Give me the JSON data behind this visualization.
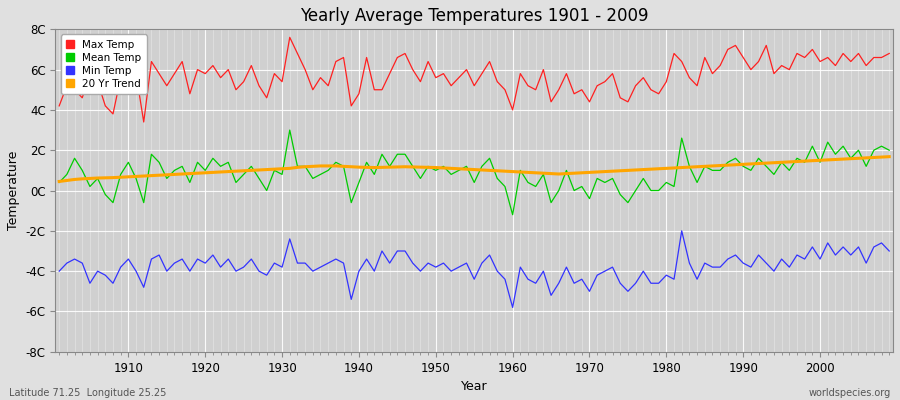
{
  "title": "Yearly Average Temperatures 1901 - 2009",
  "xlabel": "Year",
  "ylabel": "Temperature",
  "lat_lon_label": "Latitude 71.25  Longitude 25.25",
  "watermark": "worldspecies.org",
  "ylim": [
    -8,
    8
  ],
  "yticks": [
    -8,
    -6,
    -4,
    -2,
    0,
    2,
    4,
    6,
    8
  ],
  "ytick_labels": [
    "-8C",
    "-6C",
    "-4C",
    "-2C",
    "0C",
    "2C",
    "4C",
    "6C",
    "8C"
  ],
  "start_year": 1901,
  "end_year": 2009,
  "max_temp_color": "#ff2020",
  "mean_temp_color": "#00cc00",
  "min_temp_color": "#3333ff",
  "trend_color": "#ffa500",
  "background_color": "#e0e0e0",
  "plot_bg_color": "#d0d0d0",
  "legend_labels": [
    "Max Temp",
    "Mean Temp",
    "Min Temp",
    "20 Yr Trend"
  ],
  "max_temp": [
    4.2,
    5.2,
    5.0,
    4.6,
    5.8,
    5.4,
    4.2,
    3.8,
    5.6,
    6.2,
    5.8,
    3.4,
    6.4,
    5.8,
    5.2,
    5.8,
    6.4,
    4.8,
    6.0,
    5.8,
    6.2,
    5.6,
    6.0,
    5.0,
    5.4,
    6.2,
    5.2,
    4.6,
    5.8,
    5.4,
    7.6,
    6.8,
    6.0,
    5.0,
    5.6,
    5.2,
    6.4,
    6.6,
    4.2,
    4.8,
    6.6,
    5.0,
    5.0,
    5.8,
    6.6,
    6.8,
    6.0,
    5.4,
    6.4,
    5.6,
    5.8,
    5.2,
    5.6,
    6.0,
    5.2,
    5.8,
    6.4,
    5.4,
    5.0,
    4.0,
    5.8,
    5.2,
    5.0,
    6.0,
    4.4,
    5.0,
    5.8,
    4.8,
    5.0,
    4.4,
    5.2,
    5.4,
    5.8,
    4.6,
    4.4,
    5.2,
    5.6,
    5.0,
    4.8,
    5.4,
    6.8,
    6.4,
    5.6,
    5.2,
    6.6,
    5.8,
    6.2,
    7.0,
    7.2,
    6.6,
    6.0,
    6.4,
    7.2,
    5.8,
    6.2,
    6.0,
    6.8,
    6.6,
    7.0,
    6.4,
    6.6,
    6.2,
    6.8,
    6.4,
    6.8,
    6.2,
    6.6,
    6.6,
    6.8
  ],
  "mean_temp": [
    0.4,
    0.8,
    1.6,
    1.0,
    0.2,
    0.6,
    -0.2,
    -0.6,
    0.8,
    1.4,
    0.6,
    -0.6,
    1.8,
    1.4,
    0.6,
    1.0,
    1.2,
    0.4,
    1.4,
    1.0,
    1.6,
    1.2,
    1.4,
    0.4,
    0.8,
    1.2,
    0.6,
    0.0,
    1.0,
    0.8,
    3.0,
    1.2,
    1.2,
    0.6,
    0.8,
    1.0,
    1.4,
    1.2,
    -0.6,
    0.4,
    1.4,
    0.8,
    1.8,
    1.2,
    1.8,
    1.8,
    1.2,
    0.6,
    1.2,
    1.0,
    1.2,
    0.8,
    1.0,
    1.2,
    0.4,
    1.2,
    1.6,
    0.6,
    0.2,
    -1.2,
    1.0,
    0.4,
    0.2,
    0.8,
    -0.6,
    0.0,
    1.0,
    0.0,
    0.2,
    -0.4,
    0.6,
    0.4,
    0.6,
    -0.2,
    -0.6,
    0.0,
    0.6,
    0.0,
    0.0,
    0.4,
    0.2,
    2.6,
    1.2,
    0.4,
    1.2,
    1.0,
    1.0,
    1.4,
    1.6,
    1.2,
    1.0,
    1.6,
    1.2,
    0.8,
    1.4,
    1.0,
    1.6,
    1.4,
    2.2,
    1.4,
    2.4,
    1.8,
    2.2,
    1.6,
    2.0,
    1.2,
    2.0,
    2.2,
    2.0
  ],
  "min_temp": [
    -4.0,
    -3.6,
    -3.4,
    -3.6,
    -4.6,
    -4.0,
    -4.2,
    -4.6,
    -3.8,
    -3.4,
    -4.0,
    -4.8,
    -3.4,
    -3.2,
    -4.0,
    -3.6,
    -3.4,
    -4.0,
    -3.4,
    -3.6,
    -3.2,
    -3.8,
    -3.4,
    -4.0,
    -3.8,
    -3.4,
    -4.0,
    -4.2,
    -3.6,
    -3.8,
    -2.4,
    -3.6,
    -3.6,
    -4.0,
    -3.8,
    -3.6,
    -3.4,
    -3.6,
    -5.4,
    -4.0,
    -3.4,
    -4.0,
    -3.0,
    -3.6,
    -3.0,
    -3.0,
    -3.6,
    -4.0,
    -3.6,
    -3.8,
    -3.6,
    -4.0,
    -3.8,
    -3.6,
    -4.4,
    -3.6,
    -3.2,
    -4.0,
    -4.4,
    -5.8,
    -3.8,
    -4.4,
    -4.6,
    -4.0,
    -5.2,
    -4.6,
    -3.8,
    -4.6,
    -4.4,
    -5.0,
    -4.2,
    -4.0,
    -3.8,
    -4.6,
    -5.0,
    -4.6,
    -4.0,
    -4.6,
    -4.6,
    -4.2,
    -4.4,
    -2.0,
    -3.6,
    -4.4,
    -3.6,
    -3.8,
    -3.8,
    -3.4,
    -3.2,
    -3.6,
    -3.8,
    -3.2,
    -3.6,
    -4.0,
    -3.4,
    -3.8,
    -3.2,
    -3.4,
    -2.8,
    -3.4,
    -2.6,
    -3.2,
    -2.8,
    -3.2,
    -2.8,
    -3.6,
    -2.8,
    -2.6,
    -3.0
  ],
  "trend": [
    0.45,
    0.5,
    0.55,
    0.58,
    0.6,
    0.62,
    0.63,
    0.64,
    0.66,
    0.68,
    0.7,
    0.72,
    0.74,
    0.76,
    0.78,
    0.8,
    0.82,
    0.84,
    0.86,
    0.88,
    0.9,
    0.92,
    0.94,
    0.96,
    0.98,
    1.0,
    1.02,
    1.04,
    1.06,
    1.08,
    1.1,
    1.15,
    1.18,
    1.2,
    1.22,
    1.22,
    1.22,
    1.2,
    1.18,
    1.16,
    1.15,
    1.14,
    1.15,
    1.16,
    1.17,
    1.18,
    1.17,
    1.16,
    1.15,
    1.14,
    1.12,
    1.1,
    1.08,
    1.06,
    1.04,
    1.02,
    1.0,
    0.98,
    0.96,
    0.94,
    0.92,
    0.9,
    0.88,
    0.86,
    0.84,
    0.82,
    0.84,
    0.86,
    0.88,
    0.9,
    0.92,
    0.94,
    0.96,
    0.98,
    1.0,
    1.02,
    1.04,
    1.06,
    1.08,
    1.1,
    1.12,
    1.14,
    1.16,
    1.18,
    1.2,
    1.22,
    1.24,
    1.26,
    1.28,
    1.3,
    1.32,
    1.34,
    1.36,
    1.38,
    1.4,
    1.42,
    1.44,
    1.46,
    1.48,
    1.5,
    1.52,
    1.54,
    1.56,
    1.58,
    1.6,
    1.62,
    1.64,
    1.66,
    1.68
  ]
}
